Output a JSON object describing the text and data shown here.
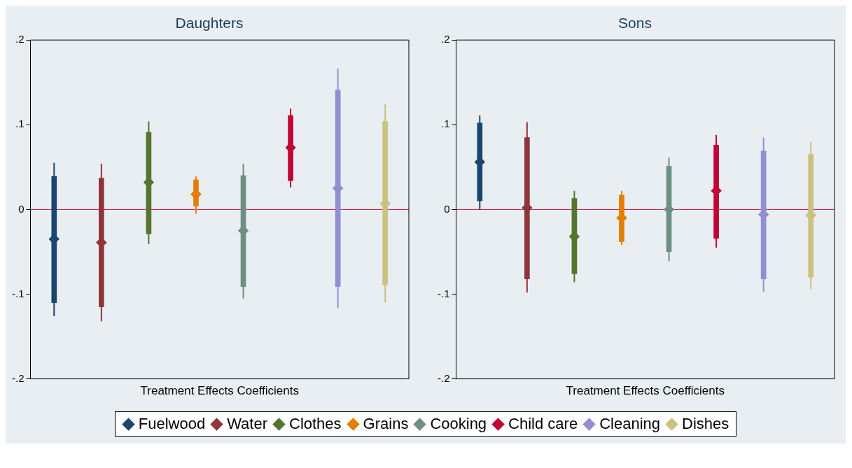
{
  "chart_data": [
    {
      "type": "scatter",
      "title": "Daughters",
      "xlabel": "Treatment Effects Coefficients",
      "categories": [
        null,
        null,
        null,
        null,
        null,
        null,
        null,
        null
      ],
      "ylim": [
        -0.2,
        0.2
      ],
      "yticks": [
        {
          "value": -0.2,
          "label": "-.2"
        },
        {
          "value": -0.1,
          "label": "-.1"
        },
        0,
        {
          "value": 0.1,
          "label": ".1"
        },
        {
          "value": 0.2,
          "label": ".2"
        }
      ],
      "grid": false,
      "marker": "diamond",
      "legend": "bottom",
      "ref_lines": [
        {
          "axis": "y",
          "value": 0,
          "color": "#c0143c"
        }
      ],
      "series": [
        {
          "type": "bar",
          "colors": [
            "#1a476f",
            "#90353b",
            "#55752f",
            "#e37e00",
            "#6e8e84",
            "#c10534",
            "#938dd2",
            "#cac27e"
          ],
          "base": [
            -0.11,
            -0.115,
            -0.029,
            0.004,
            -0.091,
            0.034,
            -0.091,
            -0.089
          ],
          "values": [
            0.149,
            0.152,
            0.12,
            0.031,
            0.131,
            0.077,
            0.232,
            0.193
          ]
        },
        {
          "name": "Fuelwood",
          "color": "#1a476f",
          "values": [
            -0.035,
            null,
            null,
            null,
            null,
            null,
            null,
            null
          ],
          "errors": [
            [
              -0.126,
              0.055
            ],
            null,
            null,
            null,
            null,
            null,
            null,
            null
          ]
        },
        {
          "name": "Water",
          "color": "#90353b",
          "values": [
            null,
            -0.039,
            null,
            null,
            null,
            null,
            null,
            null
          ],
          "errors": [
            null,
            [
              -0.132,
              0.054
            ],
            null,
            null,
            null,
            null,
            null,
            null
          ]
        },
        {
          "name": "Clothes",
          "color": "#55752f",
          "values": [
            null,
            null,
            0.032,
            null,
            null,
            null,
            null,
            null
          ],
          "errors": [
            null,
            null,
            [
              -0.041,
              0.104
            ],
            null,
            null,
            null,
            null,
            null
          ]
        },
        {
          "name": "Grains",
          "color": "#e37e00",
          "values": [
            null,
            null,
            null,
            0.018,
            null,
            null,
            null,
            null
          ],
          "errors": [
            null,
            null,
            null,
            [
              -0.005,
              0.039
            ],
            null,
            null,
            null,
            null
          ]
        },
        {
          "name": "Cooking",
          "color": "#6e8e84",
          "values": [
            null,
            null,
            null,
            null,
            -0.025,
            null,
            null,
            null
          ],
          "errors": [
            null,
            null,
            null,
            null,
            [
              -0.105,
              0.054
            ],
            null,
            null,
            null
          ]
        },
        {
          "name": "Child care",
          "color": "#c10534",
          "values": [
            null,
            null,
            null,
            null,
            null,
            0.073,
            null,
            null
          ],
          "errors": [
            null,
            null,
            null,
            null,
            null,
            [
              0.026,
              0.119
            ],
            null,
            null
          ]
        },
        {
          "name": "Cleaning",
          "color": "#938dd2",
          "values": [
            null,
            null,
            null,
            null,
            null,
            null,
            0.025,
            null
          ],
          "errors": [
            null,
            null,
            null,
            null,
            null,
            null,
            [
              -0.116,
              0.166
            ],
            null
          ]
        },
        {
          "name": "Dishes",
          "color": "#cac27e",
          "values": [
            null,
            null,
            null,
            null,
            null,
            null,
            null,
            0.007
          ],
          "errors": [
            null,
            null,
            null,
            null,
            null,
            null,
            null,
            [
              -0.11,
              0.124
            ]
          ]
        }
      ]
    },
    {
      "type": "scatter",
      "title": "Sons",
      "xlabel": "Treatment Effects Coefficients",
      "categories": [
        null,
        null,
        null,
        null,
        null,
        null,
        null,
        null
      ],
      "ylim": [
        -0.2,
        0.2
      ],
      "yticks": [
        {
          "value": -0.2,
          "label": "-.2"
        },
        {
          "value": -0.1,
          "label": "-.1"
        },
        0,
        {
          "value": 0.1,
          "label": ".1"
        },
        {
          "value": 0.2,
          "label": ".2"
        }
      ],
      "grid": false,
      "marker": "diamond",
      "ref_lines": [
        {
          "axis": "y",
          "value": 0,
          "color": "#c0143c"
        }
      ],
      "series": [
        {
          "type": "bar",
          "colors": [
            "#1a476f",
            "#90353b",
            "#55752f",
            "#e37e00",
            "#6e8e84",
            "#c10534",
            "#938dd2",
            "#cac27e"
          ],
          "base": [
            0.01,
            -0.082,
            -0.076,
            -0.038,
            -0.05,
            -0.034,
            -0.082,
            -0.08
          ],
          "values": [
            0.092,
            0.167,
            0.089,
            0.055,
            0.101,
            0.11,
            0.151,
            0.145
          ]
        },
        {
          "color": "#1a476f",
          "values": [
            0.056,
            null,
            null,
            null,
            null,
            null,
            null,
            null
          ],
          "errors": [
            [
              0.0,
              0.111
            ],
            null,
            null,
            null,
            null,
            null,
            null,
            null
          ]
        },
        {
          "color": "#90353b",
          "values": [
            null,
            0.002,
            null,
            null,
            null,
            null,
            null,
            null
          ],
          "errors": [
            null,
            [
              -0.098,
              0.103
            ],
            null,
            null,
            null,
            null,
            null,
            null
          ]
        },
        {
          "color": "#55752f",
          "values": [
            null,
            null,
            -0.032,
            null,
            null,
            null,
            null,
            null
          ],
          "errors": [
            null,
            null,
            [
              -0.086,
              0.022
            ],
            null,
            null,
            null,
            null,
            null
          ]
        },
        {
          "color": "#e37e00",
          "values": [
            null,
            null,
            null,
            -0.01,
            null,
            null,
            null,
            null
          ],
          "errors": [
            null,
            null,
            null,
            [
              -0.042,
              0.022
            ],
            null,
            null,
            null,
            null
          ]
        },
        {
          "color": "#6e8e84",
          "values": [
            null,
            null,
            null,
            null,
            0.0,
            null,
            null,
            null
          ],
          "errors": [
            null,
            null,
            null,
            null,
            [
              -0.061,
              0.061
            ],
            null,
            null,
            null
          ]
        },
        {
          "color": "#c10534",
          "values": [
            null,
            null,
            null,
            null,
            null,
            0.022,
            null,
            null
          ],
          "errors": [
            null,
            null,
            null,
            null,
            null,
            [
              -0.045,
              0.088
            ],
            null,
            null
          ]
        },
        {
          "color": "#938dd2",
          "values": [
            null,
            null,
            null,
            null,
            null,
            null,
            -0.006,
            null
          ],
          "errors": [
            null,
            null,
            null,
            null,
            null,
            null,
            [
              -0.097,
              0.085
            ],
            null
          ]
        },
        {
          "color": "#cac27e",
          "values": [
            null,
            null,
            null,
            null,
            null,
            null,
            null,
            -0.007
          ],
          "errors": [
            null,
            null,
            null,
            null,
            null,
            null,
            null,
            [
              -0.094,
              0.08
            ]
          ]
        }
      ]
    }
  ]
}
